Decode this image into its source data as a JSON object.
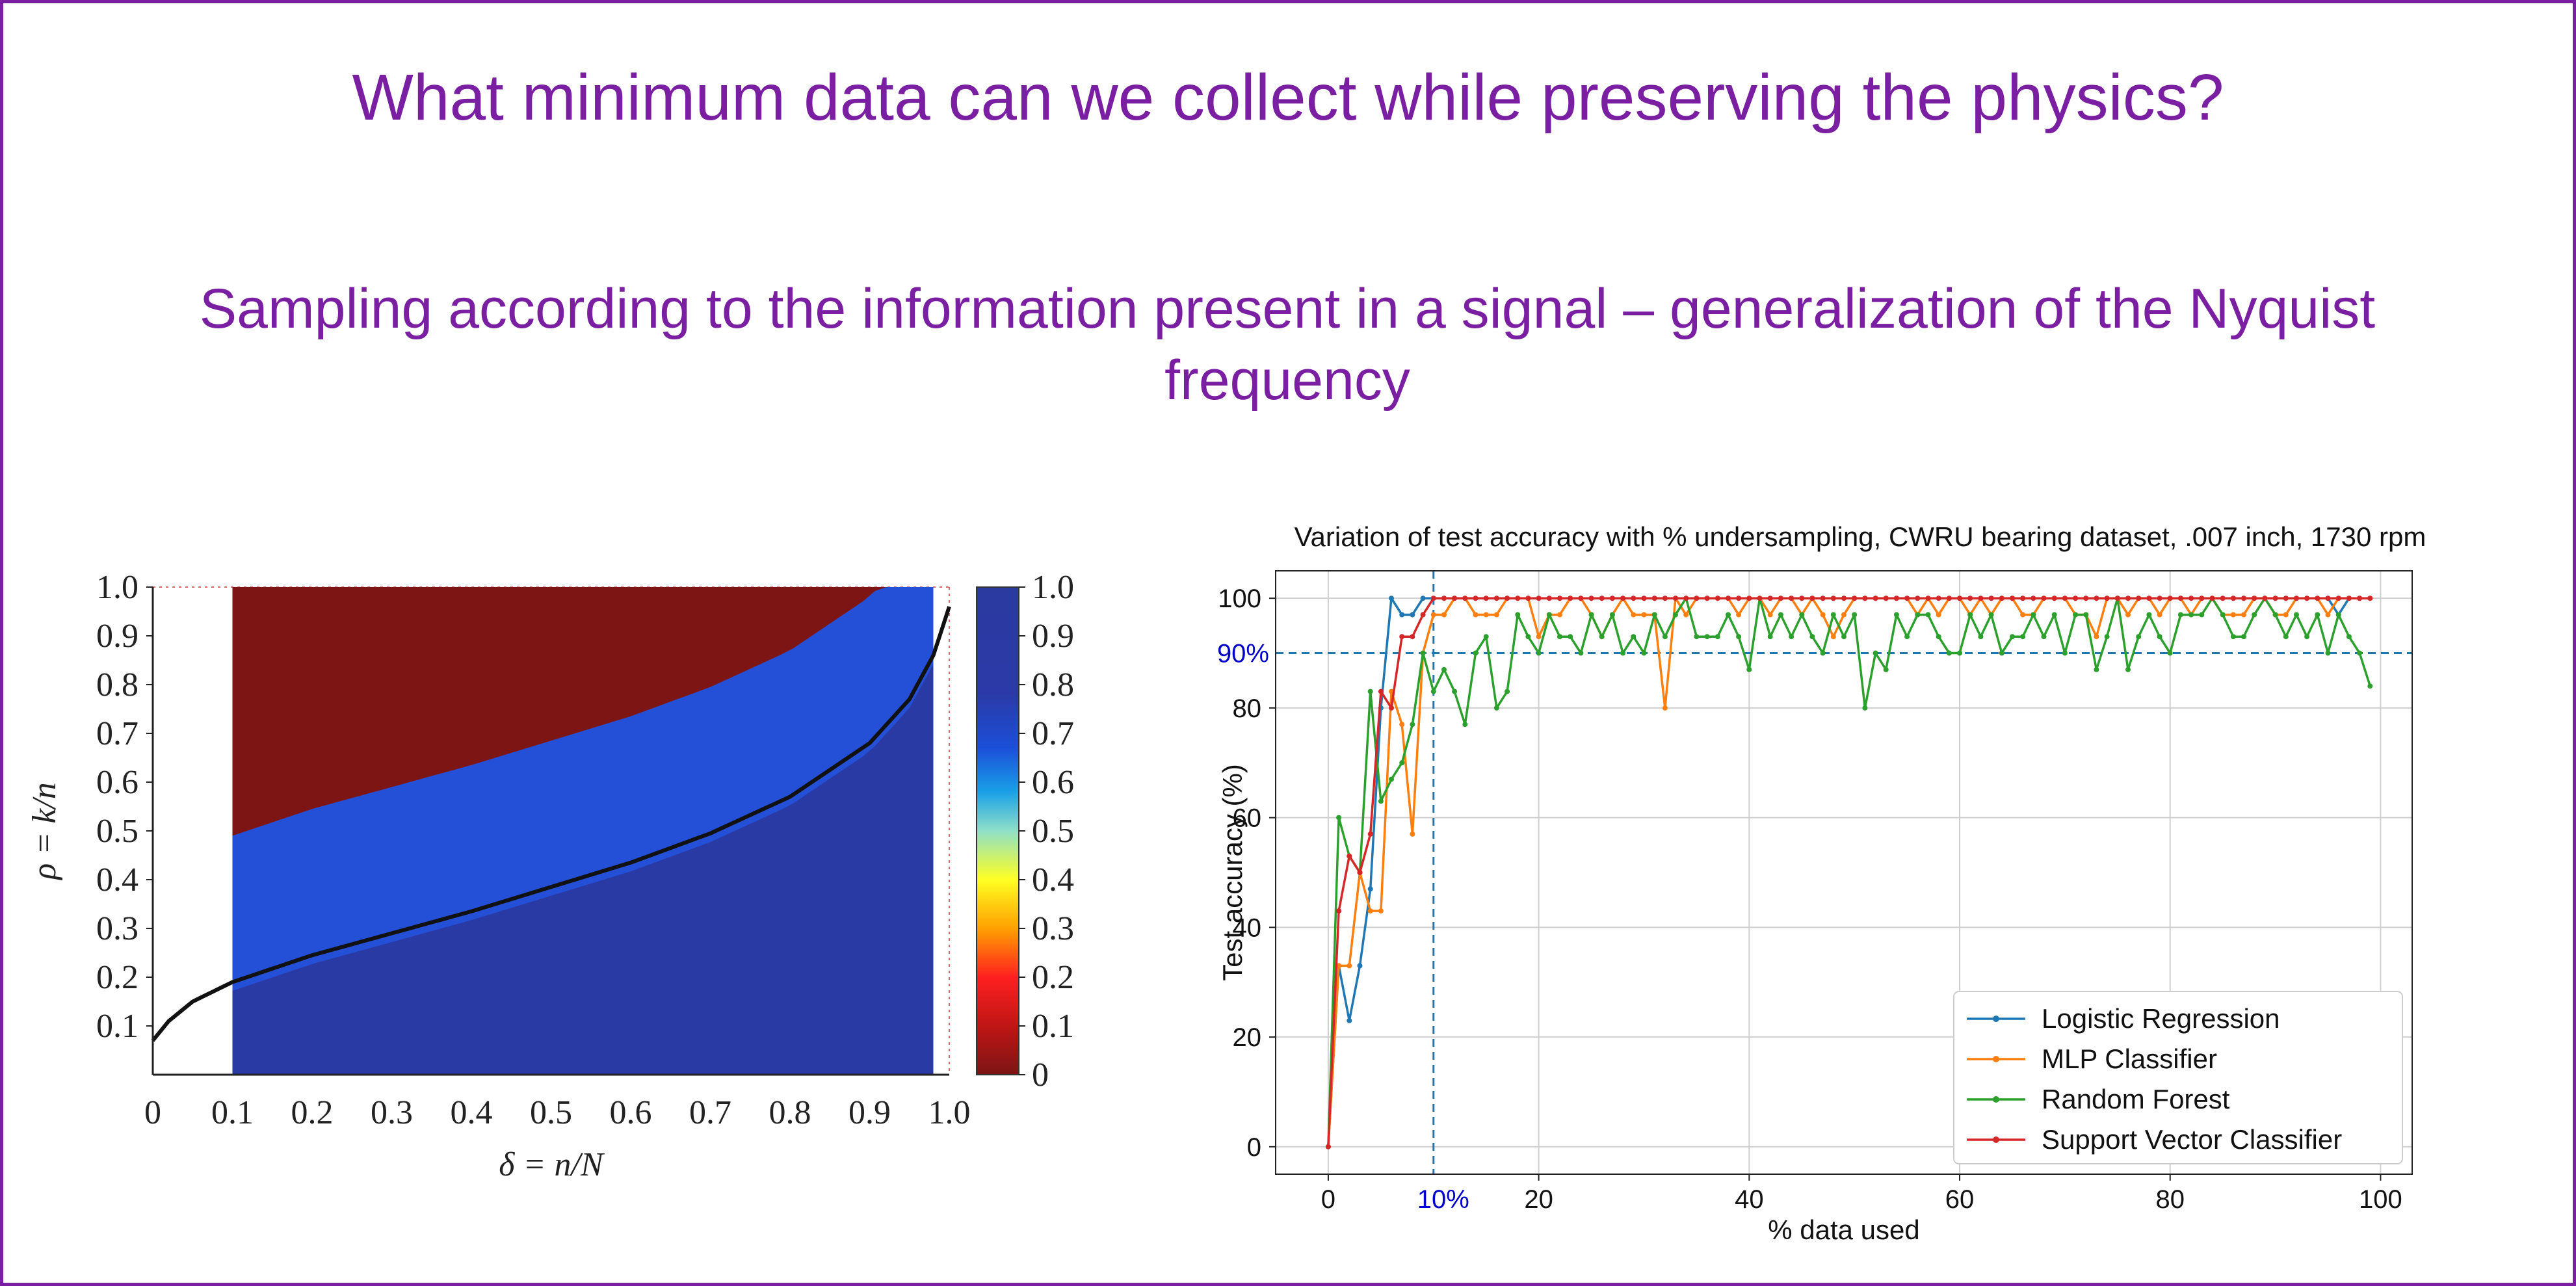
{
  "slide": {
    "title": "What minimum data can we collect while preserving the physics?",
    "subtitle": "Sampling according to the information present in a signal – generalization of the Nyquist frequency",
    "frame_color": "#7a1fa2"
  },
  "chart_data": [
    {
      "type": "heatmap",
      "title": "",
      "xlabel": "δ = n/N",
      "ylabel": "ρ = k/n",
      "x_ticks": [
        "0",
        "0.1",
        "0.2",
        "0.3",
        "0.4",
        "0.5",
        "0.6",
        "0.7",
        "0.8",
        "0.9",
        "1.0"
      ],
      "y_ticks": [
        "0.1",
        "0.2",
        "0.3",
        "0.4",
        "0.5",
        "0.6",
        "0.7",
        "0.8",
        "0.9",
        "1.0"
      ],
      "colorbar_ticks": [
        "1.0",
        "0.9",
        "0.8",
        "0.7",
        "0.6",
        "0.5",
        "0.4",
        "0.3",
        "0.2",
        "0.1",
        "0"
      ],
      "xlim": [
        0,
        1.0
      ],
      "ylim": [
        0,
        1.0
      ],
      "data_x_range": [
        0.1,
        0.98
      ],
      "phase_transition_curve": {
        "x": [
          0.0,
          0.02,
          0.05,
          0.1,
          0.2,
          0.3,
          0.4,
          0.5,
          0.6,
          0.7,
          0.8,
          0.9,
          0.95,
          0.98,
          1.0
        ],
        "y": [
          0.07,
          0.11,
          0.15,
          0.19,
          0.245,
          0.29,
          0.335,
          0.385,
          0.435,
          0.495,
          0.57,
          0.68,
          0.77,
          0.86,
          0.96
        ]
      },
      "colormap": [
        "#00007f",
        "#0000ff",
        "#00bfff",
        "#ffff00",
        "#ff0000",
        "#7f0000"
      ],
      "region_above_curve_value": 0.0,
      "region_below_curve_value": 1.0
    },
    {
      "type": "line",
      "title": "Variation of test accuracy with % undersampling, CWRU bearing dataset, .007 inch, 1730 rpm",
      "xlabel": "% data used",
      "ylabel": "Test accuracy (%)",
      "xlim": [
        -5,
        103
      ],
      "ylim": [
        -5,
        105
      ],
      "x_ticks": [
        0,
        20,
        40,
        60,
        80,
        100
      ],
      "y_ticks": [
        0,
        20,
        40,
        60,
        80,
        100
      ],
      "grid": true,
      "legend_position": "lower-right",
      "reference_lines": {
        "horizontal": {
          "y": 90,
          "label": "90%"
        },
        "vertical": {
          "x": 10,
          "label": "10%"
        },
        "color": "#1f77b4",
        "label_color": "#0000cc"
      },
      "x": [
        0,
        1,
        2,
        3,
        4,
        5,
        6,
        7,
        8,
        9,
        10,
        11,
        12,
        13,
        14,
        15,
        16,
        17,
        18,
        19,
        20,
        21,
        22,
        23,
        24,
        25,
        26,
        27,
        28,
        29,
        30,
        31,
        32,
        33,
        34,
        35,
        36,
        37,
        38,
        39,
        40,
        41,
        42,
        43,
        44,
        45,
        46,
        47,
        48,
        49,
        50,
        51,
        52,
        53,
        54,
        55,
        56,
        57,
        58,
        59,
        60,
        61,
        62,
        63,
        64,
        65,
        66,
        67,
        68,
        69,
        70,
        71,
        72,
        73,
        74,
        75,
        76,
        77,
        78,
        79,
        80,
        81,
        82,
        83,
        84,
        85,
        86,
        87,
        88,
        89,
        90,
        91,
        92,
        93,
        94,
        95,
        96,
        97,
        98,
        99
      ],
      "series": [
        {
          "name": "Logistic Regression",
          "color": "#1f77b4",
          "marker": "star",
          "values": [
            0,
            33,
            23,
            33,
            47,
            80,
            100,
            97,
            97,
            100,
            100,
            100,
            100,
            100,
            100,
            100,
            100,
            100,
            100,
            100,
            100,
            100,
            100,
            100,
            100,
            100,
            100,
            100,
            100,
            100,
            100,
            100,
            100,
            100,
            100,
            100,
            100,
            100,
            100,
            100,
            100,
            100,
            100,
            100,
            100,
            100,
            100,
            100,
            100,
            100,
            100,
            100,
            100,
            100,
            100,
            100,
            100,
            100,
            100,
            100,
            100,
            100,
            100,
            100,
            100,
            100,
            100,
            100,
            100,
            100,
            100,
            100,
            100,
            100,
            100,
            100,
            100,
            100,
            100,
            100,
            100,
            100,
            100,
            100,
            100,
            100,
            100,
            100,
            100,
            100,
            100,
            100,
            100,
            100,
            100,
            100,
            97,
            100,
            100,
            100
          ]
        },
        {
          "name": "MLP Classifier",
          "color": "#ff7f0e",
          "marker": "tri",
          "values": [
            0,
            33,
            33,
            50,
            43,
            43,
            83,
            77,
            57,
            90,
            97,
            97,
            100,
            100,
            97,
            97,
            97,
            100,
            100,
            100,
            93,
            97,
            97,
            100,
            100,
            97,
            93,
            97,
            100,
            97,
            97,
            97,
            80,
            100,
            97,
            100,
            100,
            100,
            100,
            97,
            100,
            100,
            97,
            100,
            100,
            97,
            100,
            97,
            93,
            97,
            100,
            100,
            100,
            100,
            100,
            100,
            97,
            100,
            97,
            100,
            100,
            97,
            100,
            97,
            100,
            100,
            97,
            97,
            100,
            100,
            100,
            97,
            97,
            93,
            100,
            100,
            97,
            100,
            100,
            97,
            100,
            100,
            97,
            100,
            100,
            97,
            97,
            97,
            100,
            100,
            97,
            97,
            100,
            100,
            100,
            97,
            100,
            100,
            100,
            100
          ]
        },
        {
          "name": "Random Forest",
          "color": "#2ca02c",
          "marker": "dot",
          "values": [
            0,
            60,
            53,
            50,
            83,
            63,
            67,
            70,
            77,
            90,
            83,
            87,
            83,
            77,
            90,
            93,
            80,
            83,
            97,
            93,
            90,
            97,
            93,
            93,
            90,
            97,
            93,
            97,
            90,
            93,
            90,
            97,
            93,
            97,
            100,
            93,
            93,
            93,
            97,
            93,
            87,
            100,
            93,
            97,
            93,
            97,
            93,
            90,
            97,
            93,
            97,
            80,
            90,
            87,
            97,
            93,
            97,
            97,
            93,
            90,
            90,
            97,
            93,
            97,
            90,
            93,
            93,
            97,
            93,
            97,
            90,
            97,
            97,
            87,
            93,
            100,
            87,
            93,
            97,
            93,
            90,
            97,
            97,
            97,
            100,
            97,
            93,
            93,
            97,
            100,
            97,
            93,
            97,
            93,
            97,
            90,
            97,
            93,
            90,
            84
          ]
        },
        {
          "name": "Support Vector Classifier",
          "color": "#d62728",
          "marker": "tri-down",
          "values": [
            0,
            43,
            53,
            50,
            57,
            83,
            80,
            93,
            93,
            97,
            100,
            100,
            100,
            100,
            100,
            100,
            100,
            100,
            100,
            100,
            100,
            100,
            100,
            100,
            100,
            100,
            100,
            100,
            100,
            100,
            100,
            100,
            100,
            100,
            100,
            100,
            100,
            100,
            100,
            100,
            100,
            100,
            100,
            100,
            100,
            100,
            100,
            100,
            100,
            100,
            100,
            100,
            100,
            100,
            100,
            100,
            100,
            100,
            100,
            100,
            100,
            100,
            100,
            100,
            100,
            100,
            100,
            100,
            100,
            100,
            100,
            100,
            100,
            100,
            100,
            100,
            100,
            100,
            100,
            100,
            100,
            100,
            100,
            100,
            100,
            100,
            100,
            100,
            100,
            100,
            100,
            100,
            100,
            100,
            100,
            100,
            100,
            100,
            100,
            100
          ]
        }
      ]
    }
  ]
}
